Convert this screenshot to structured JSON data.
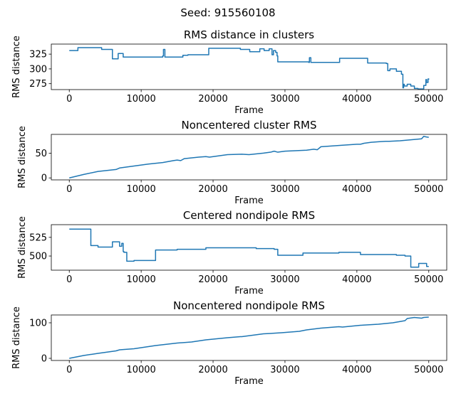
{
  "figure": {
    "suptitle": "Seed: 915560108"
  },
  "colors": {
    "series": "#1f77b4"
  },
  "chart_data": [
    {
      "type": "line",
      "title": "RMS distance in clusters",
      "xlabel": "Frame",
      "ylabel": "RMS distance",
      "xlim": [
        -2500,
        52500
      ],
      "ylim": [
        265,
        342
      ],
      "xticks": [
        0,
        10000,
        20000,
        30000,
        40000,
        50000
      ],
      "yticks": [
        275,
        300,
        325
      ],
      "grid": false,
      "step": true,
      "series": [
        {
          "x": [
            0,
            1200,
            4500,
            6000,
            6800,
            7500,
            11000,
            13000,
            13100,
            13300,
            15000,
            15800,
            16500,
            19400,
            23800,
            25100,
            26500,
            27100,
            27800,
            28200,
            28400,
            28700,
            28900,
            29000,
            32000,
            33300,
            33400,
            33600,
            35000,
            37600,
            40800,
            41500,
            43200,
            44100,
            44300,
            44600,
            45500,
            46200,
            46400,
            46500,
            46600,
            47000,
            47500,
            48000,
            48500,
            49300,
            49600,
            49700,
            49900,
            50000
          ],
          "y": [
            331,
            336,
            333,
            317,
            326,
            320,
            320,
            322,
            333,
            320,
            320,
            323,
            324,
            335,
            333,
            329,
            334,
            331,
            334,
            324,
            331,
            328,
            322,
            312,
            312,
            311,
            319,
            311,
            311,
            318,
            318,
            310,
            310,
            309,
            297,
            300,
            296,
            291,
            268,
            274,
            271,
            274,
            271,
            267,
            266,
            272,
            282,
            277,
            283,
            282
          ]
        }
      ]
    },
    {
      "type": "line",
      "title": "Noncentered cluster RMS",
      "xlabel": "Frame",
      "ylabel": "RMS distance",
      "xlim": [
        -2500,
        52500
      ],
      "ylim": [
        -4,
        88
      ],
      "xticks": [
        0,
        10000,
        20000,
        30000,
        40000,
        50000
      ],
      "yticks": [
        0,
        50
      ],
      "grid": false,
      "step": false,
      "series": [
        {
          "x": [
            0,
            2000,
            4000,
            6500,
            7000,
            9000,
            11000,
            13000,
            14500,
            15000,
            15500,
            16000,
            18000,
            19000,
            19500,
            22000,
            24000,
            25000,
            27000,
            28000,
            28500,
            29000,
            30000,
            33000,
            34000,
            34500,
            35000,
            38000,
            40000,
            40500,
            41000,
            42000,
            43000,
            44000,
            44500,
            46000,
            47500,
            49000,
            49300,
            49600,
            50000
          ],
          "y": [
            0,
            7,
            13,
            17,
            20,
            24,
            28,
            31,
            35,
            36,
            35,
            39,
            42,
            43,
            42,
            47,
            48,
            47,
            50,
            52,
            54,
            52,
            54,
            56,
            58,
            57,
            63,
            66,
            68,
            68,
            70,
            72,
            73,
            74,
            74,
            75,
            77,
            79,
            84,
            83,
            82
          ]
        }
      ]
    },
    {
      "type": "line",
      "title": "Centered nondipole RMS",
      "xlabel": "Frame",
      "ylabel": "RMS distance",
      "xlim": [
        -2500,
        52500
      ],
      "ylim": [
        481,
        542
      ],
      "xticks": [
        0,
        10000,
        20000,
        30000,
        40000,
        50000
      ],
      "yticks": [
        500,
        525
      ],
      "grid": false,
      "step": true,
      "series": [
        {
          "x": [
            0,
            2200,
            3000,
            4000,
            6000,
            6200,
            7000,
            7300,
            7500,
            7600,
            8000,
            9000,
            12000,
            15000,
            19000,
            23800,
            26000,
            28500,
            29000,
            32500,
            37500,
            40500,
            45500,
            46700,
            47500,
            48600,
            49400,
            49700,
            50000
          ],
          "y": [
            536,
            536,
            514,
            512,
            519,
            519,
            513,
            517,
            506,
            505,
            493,
            494,
            508,
            509,
            511,
            511,
            510,
            509,
            501,
            504,
            505,
            502,
            501,
            500,
            485,
            490,
            490,
            486,
            486
          ]
        }
      ]
    },
    {
      "type": "line",
      "title": "Noncentered nondipole RMS",
      "xlabel": "Frame",
      "ylabel": "RMS distance",
      "xlim": [
        -2500,
        52500
      ],
      "ylim": [
        -6,
        122
      ],
      "xticks": [
        0,
        10000,
        20000,
        30000,
        40000,
        50000
      ],
      "yticks": [
        0,
        100
      ],
      "grid": false,
      "step": false,
      "series": [
        {
          "x": [
            0,
            2000,
            4000,
            6500,
            7000,
            9000,
            12000,
            15000,
            17000,
            19000,
            22000,
            23800,
            24000,
            27000,
            28000,
            29500,
            32000,
            33000,
            35000,
            37500,
            38000,
            40000,
            40500,
            43000,
            45000,
            46700,
            47000,
            48000,
            49000,
            49300,
            50000
          ],
          "y": [
            0,
            8,
            14,
            21,
            24,
            27,
            36,
            43,
            46,
            52,
            58,
            61,
            61,
            69,
            70,
            72,
            76,
            80,
            85,
            89,
            88,
            92,
            93,
            96,
            100,
            106,
            112,
            115,
            113,
            115,
            116
          ]
        }
      ]
    }
  ]
}
